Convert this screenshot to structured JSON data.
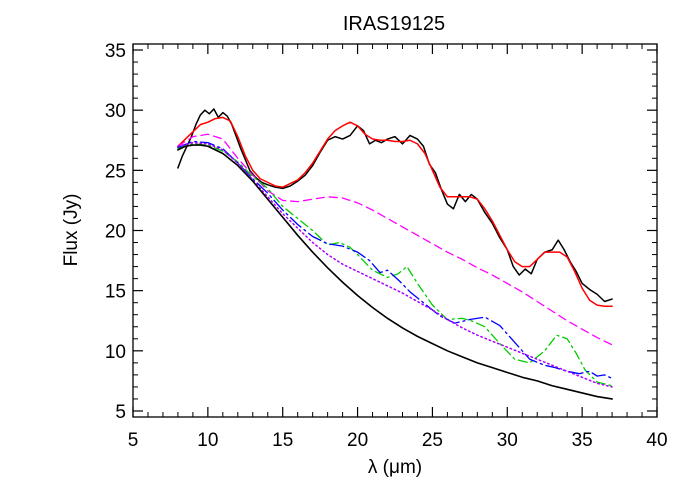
{
  "chart_data": {
    "type": "line",
    "title": "IRAS19125",
    "xlabel": "λ (μm)",
    "ylabel": "Flux (Jy)",
    "xlim": [
      5,
      40
    ],
    "ylim": [
      4.5,
      35.5
    ],
    "xticks": [
      5,
      10,
      15,
      20,
      25,
      30,
      35,
      40
    ],
    "yticks": [
      5,
      10,
      15,
      20,
      25,
      30,
      35
    ],
    "grid": false,
    "legend": "none",
    "series": [
      {
        "color": "#000000",
        "style": "solid",
        "width": 1.5,
        "points": [
          [
            8.0,
            25.2
          ],
          [
            8.3,
            26.2
          ],
          [
            8.6,
            27.0
          ],
          [
            8.9,
            27.8
          ],
          [
            9.2,
            28.8
          ],
          [
            9.5,
            29.6
          ],
          [
            9.8,
            30.0
          ],
          [
            10.1,
            29.7
          ],
          [
            10.4,
            30.1
          ],
          [
            10.7,
            29.4
          ],
          [
            11.0,
            29.8
          ],
          [
            11.3,
            29.5
          ],
          [
            11.6,
            28.8
          ],
          [
            11.9,
            27.8
          ],
          [
            12.2,
            26.8
          ],
          [
            12.5,
            25.9
          ],
          [
            12.8,
            25.0
          ],
          [
            13.2,
            24.4
          ],
          [
            13.6,
            24.0
          ],
          [
            14.0,
            23.8
          ],
          [
            14.5,
            23.6
          ],
          [
            15.0,
            23.5
          ],
          [
            15.5,
            23.7
          ],
          [
            16.0,
            24.1
          ],
          [
            16.5,
            24.6
          ],
          [
            17.0,
            25.4
          ],
          [
            17.5,
            26.5
          ],
          [
            18.0,
            27.5
          ],
          [
            18.5,
            27.8
          ],
          [
            19.0,
            27.6
          ],
          [
            19.5,
            27.9
          ],
          [
            20.0,
            28.7
          ],
          [
            20.4,
            28.3
          ],
          [
            20.8,
            27.2
          ],
          [
            21.2,
            27.5
          ],
          [
            21.6,
            27.3
          ],
          [
            22.0,
            27.6
          ],
          [
            22.5,
            27.8
          ],
          [
            23.0,
            27.2
          ],
          [
            23.5,
            27.9
          ],
          [
            24.0,
            27.6
          ],
          [
            24.4,
            27.0
          ],
          [
            24.8,
            25.5
          ],
          [
            25.2,
            24.8
          ],
          [
            25.6,
            23.4
          ],
          [
            26.0,
            22.2
          ],
          [
            26.4,
            21.8
          ],
          [
            26.8,
            23.0
          ],
          [
            27.2,
            22.4
          ],
          [
            27.6,
            23.0
          ],
          [
            28.0,
            22.6
          ],
          [
            28.5,
            21.5
          ],
          [
            29.0,
            20.6
          ],
          [
            29.5,
            19.4
          ],
          [
            30.0,
            18.4
          ],
          [
            30.4,
            17.0
          ],
          [
            30.8,
            16.3
          ],
          [
            31.2,
            16.8
          ],
          [
            31.6,
            16.4
          ],
          [
            32.0,
            17.6
          ],
          [
            32.5,
            18.2
          ],
          [
            33.0,
            18.4
          ],
          [
            33.4,
            19.2
          ],
          [
            33.8,
            18.4
          ],
          [
            34.2,
            17.4
          ],
          [
            34.6,
            16.6
          ],
          [
            35.0,
            15.6
          ],
          [
            35.5,
            15.1
          ],
          [
            36.0,
            14.7
          ],
          [
            36.5,
            14.1
          ],
          [
            37.0,
            14.3
          ]
        ]
      },
      {
        "color": "#ff0000",
        "style": "solid",
        "width": 1.5,
        "points": [
          [
            8.0,
            27.0
          ],
          [
            8.5,
            27.6
          ],
          [
            9.0,
            28.2
          ],
          [
            9.5,
            28.8
          ],
          [
            10.0,
            29.0
          ],
          [
            10.5,
            29.3
          ],
          [
            11.0,
            29.4
          ],
          [
            11.5,
            29.1
          ],
          [
            12.0,
            27.8
          ],
          [
            12.5,
            26.2
          ],
          [
            13.0,
            25.0
          ],
          [
            13.5,
            24.3
          ],
          [
            14.0,
            24.0
          ],
          [
            14.5,
            23.7
          ],
          [
            15.0,
            23.6
          ],
          [
            15.5,
            23.9
          ],
          [
            16.0,
            24.2
          ],
          [
            16.5,
            24.8
          ],
          [
            17.0,
            25.6
          ],
          [
            17.5,
            26.6
          ],
          [
            18.0,
            27.6
          ],
          [
            18.5,
            28.3
          ],
          [
            19.0,
            28.7
          ],
          [
            19.5,
            29.0
          ],
          [
            20.0,
            28.7
          ],
          [
            20.5,
            28.0
          ],
          [
            21.0,
            27.6
          ],
          [
            21.5,
            27.5
          ],
          [
            22.0,
            27.5
          ],
          [
            22.5,
            27.4
          ],
          [
            23.0,
            27.4
          ],
          [
            23.5,
            27.5
          ],
          [
            24.0,
            27.2
          ],
          [
            24.5,
            26.4
          ],
          [
            25.0,
            25.0
          ],
          [
            25.5,
            23.6
          ],
          [
            26.0,
            22.8
          ],
          [
            26.5,
            22.8
          ],
          [
            27.0,
            22.8
          ],
          [
            27.5,
            22.8
          ],
          [
            28.0,
            22.6
          ],
          [
            28.5,
            21.8
          ],
          [
            29.0,
            20.8
          ],
          [
            29.5,
            19.6
          ],
          [
            30.0,
            18.4
          ],
          [
            30.5,
            17.4
          ],
          [
            31.0,
            17.0
          ],
          [
            31.5,
            17.0
          ],
          [
            32.0,
            17.6
          ],
          [
            32.5,
            18.2
          ],
          [
            33.0,
            18.2
          ],
          [
            33.5,
            18.2
          ],
          [
            34.0,
            17.8
          ],
          [
            34.5,
            16.6
          ],
          [
            35.0,
            15.2
          ],
          [
            35.5,
            14.2
          ],
          [
            36.0,
            13.8
          ],
          [
            36.5,
            13.7
          ],
          [
            37.0,
            13.7
          ]
        ]
      },
      {
        "color": "#ff00ff",
        "style": "dashed",
        "width": 1.3,
        "points": [
          [
            8.0,
            27.0
          ],
          [
            9.0,
            27.8
          ],
          [
            10.0,
            28.0
          ],
          [
            11.0,
            27.6
          ],
          [
            12.0,
            26.0
          ],
          [
            13.0,
            24.6
          ],
          [
            14.0,
            23.3
          ],
          [
            15.0,
            22.5
          ],
          [
            16.0,
            22.4
          ],
          [
            17.0,
            22.6
          ],
          [
            18.0,
            22.8
          ],
          [
            19.0,
            22.7
          ],
          [
            20.0,
            22.3
          ],
          [
            21.0,
            21.7
          ],
          [
            22.0,
            21.0
          ],
          [
            23.0,
            20.3
          ],
          [
            24.0,
            19.6
          ],
          [
            25.0,
            18.9
          ],
          [
            26.0,
            18.2
          ],
          [
            27.0,
            17.6
          ],
          [
            28.0,
            16.9
          ],
          [
            29.0,
            16.3
          ],
          [
            30.0,
            15.6
          ],
          [
            31.0,
            14.9
          ],
          [
            32.0,
            14.1
          ],
          [
            33.0,
            13.3
          ],
          [
            34.0,
            12.5
          ],
          [
            35.0,
            11.8
          ],
          [
            36.0,
            11.1
          ],
          [
            37.0,
            10.5
          ]
        ]
      },
      {
        "color": "#00cc00",
        "style": "dashdot",
        "width": 1.3,
        "points": [
          [
            8.0,
            26.8
          ],
          [
            9.0,
            27.2
          ],
          [
            10.0,
            27.1
          ],
          [
            11.0,
            26.6
          ],
          [
            12.0,
            25.7
          ],
          [
            13.0,
            24.5
          ],
          [
            14.0,
            23.5
          ],
          [
            15.0,
            22.0
          ],
          [
            16.0,
            21.0
          ],
          [
            17.0,
            20.0
          ],
          [
            18.0,
            18.8
          ],
          [
            18.8,
            19.0
          ],
          [
            19.5,
            18.6
          ],
          [
            20.0,
            18.0
          ],
          [
            21.0,
            16.7
          ],
          [
            22.0,
            16.1
          ],
          [
            22.7,
            16.4
          ],
          [
            23.3,
            17.0
          ],
          [
            24.0,
            15.6
          ],
          [
            25.0,
            13.8
          ],
          [
            26.0,
            12.6
          ],
          [
            27.0,
            12.7
          ],
          [
            27.6,
            12.5
          ],
          [
            28.5,
            12.0
          ],
          [
            29.5,
            10.6
          ],
          [
            30.5,
            9.3
          ],
          [
            31.5,
            9.0
          ],
          [
            32.5,
            10.0
          ],
          [
            33.3,
            11.3
          ],
          [
            34.0,
            11.0
          ],
          [
            34.6,
            9.8
          ],
          [
            35.2,
            8.4
          ],
          [
            36.0,
            7.4
          ],
          [
            37.0,
            7.1
          ]
        ]
      },
      {
        "color": "#0000ff",
        "style": "longdashdot",
        "width": 1.3,
        "points": [
          [
            8.0,
            26.9
          ],
          [
            9.0,
            27.4
          ],
          [
            10.0,
            27.3
          ],
          [
            11.0,
            26.8
          ],
          [
            12.0,
            25.6
          ],
          [
            13.0,
            24.3
          ],
          [
            14.0,
            23.1
          ],
          [
            15.0,
            21.7
          ],
          [
            16.0,
            20.5
          ],
          [
            17.0,
            19.5
          ],
          [
            18.0,
            18.9
          ],
          [
            19.0,
            18.7
          ],
          [
            20.0,
            18.2
          ],
          [
            20.8,
            17.5
          ],
          [
            21.5,
            16.5
          ],
          [
            22.0,
            16.7
          ],
          [
            22.8,
            15.8
          ],
          [
            23.5,
            14.9
          ],
          [
            24.5,
            13.9
          ],
          [
            25.5,
            12.9
          ],
          [
            26.5,
            12.3
          ],
          [
            27.5,
            12.6
          ],
          [
            28.5,
            12.8
          ],
          [
            29.5,
            12.1
          ],
          [
            30.5,
            10.7
          ],
          [
            31.5,
            9.3
          ],
          [
            32.5,
            8.8
          ],
          [
            33.2,
            8.6
          ],
          [
            34.0,
            8.3
          ],
          [
            34.8,
            8.1
          ],
          [
            35.5,
            8.3
          ],
          [
            36.0,
            7.9
          ],
          [
            36.5,
            8.0
          ],
          [
            37.0,
            7.7
          ]
        ]
      },
      {
        "color": "#aa00ff",
        "style": "dotted",
        "width": 1.5,
        "points": [
          [
            8.0,
            27.0
          ],
          [
            9.0,
            27.3
          ],
          [
            10.0,
            27.2
          ],
          [
            11.0,
            26.7
          ],
          [
            12.0,
            25.6
          ],
          [
            13.0,
            24.2
          ],
          [
            14.0,
            22.8
          ],
          [
            15.0,
            21.4
          ],
          [
            16.0,
            20.2
          ],
          [
            17.0,
            19.0
          ],
          [
            18.0,
            18.0
          ],
          [
            19.0,
            17.2
          ],
          [
            20.0,
            16.6
          ],
          [
            21.0,
            16.0
          ],
          [
            22.0,
            15.4
          ],
          [
            23.0,
            14.8
          ],
          [
            24.0,
            14.1
          ],
          [
            25.0,
            13.4
          ],
          [
            26.0,
            12.6
          ],
          [
            27.0,
            11.9
          ],
          [
            28.0,
            11.3
          ],
          [
            29.0,
            10.8
          ],
          [
            30.0,
            10.3
          ],
          [
            31.0,
            9.8
          ],
          [
            32.0,
            9.3
          ],
          [
            33.0,
            8.8
          ],
          [
            34.0,
            8.3
          ],
          [
            35.0,
            7.8
          ],
          [
            36.0,
            7.3
          ],
          [
            37.0,
            7.0
          ]
        ]
      },
      {
        "color": "#000000",
        "style": "solid",
        "width": 1.6,
        "points": [
          [
            8.0,
            26.7
          ],
          [
            8.5,
            27.0
          ],
          [
            9.0,
            27.1
          ],
          [
            9.5,
            27.1
          ],
          [
            10.0,
            27.0
          ],
          [
            11.0,
            26.4
          ],
          [
            12.0,
            25.4
          ],
          [
            13.0,
            24.1
          ],
          [
            14.0,
            22.6
          ],
          [
            15.0,
            21.1
          ],
          [
            16.0,
            19.6
          ],
          [
            17.0,
            18.2
          ],
          [
            18.0,
            16.9
          ],
          [
            19.0,
            15.7
          ],
          [
            20.0,
            14.6
          ],
          [
            21.0,
            13.6
          ],
          [
            22.0,
            12.7
          ],
          [
            23.0,
            11.9
          ],
          [
            24.0,
            11.2
          ],
          [
            25.0,
            10.6
          ],
          [
            26.0,
            10.0
          ],
          [
            27.0,
            9.5
          ],
          [
            28.0,
            9.0
          ],
          [
            29.0,
            8.6
          ],
          [
            30.0,
            8.2
          ],
          [
            31.0,
            7.8
          ],
          [
            32.0,
            7.5
          ],
          [
            33.0,
            7.1
          ],
          [
            34.0,
            6.8
          ],
          [
            35.0,
            6.5
          ],
          [
            36.0,
            6.2
          ],
          [
            37.0,
            6.0
          ]
        ]
      }
    ]
  }
}
